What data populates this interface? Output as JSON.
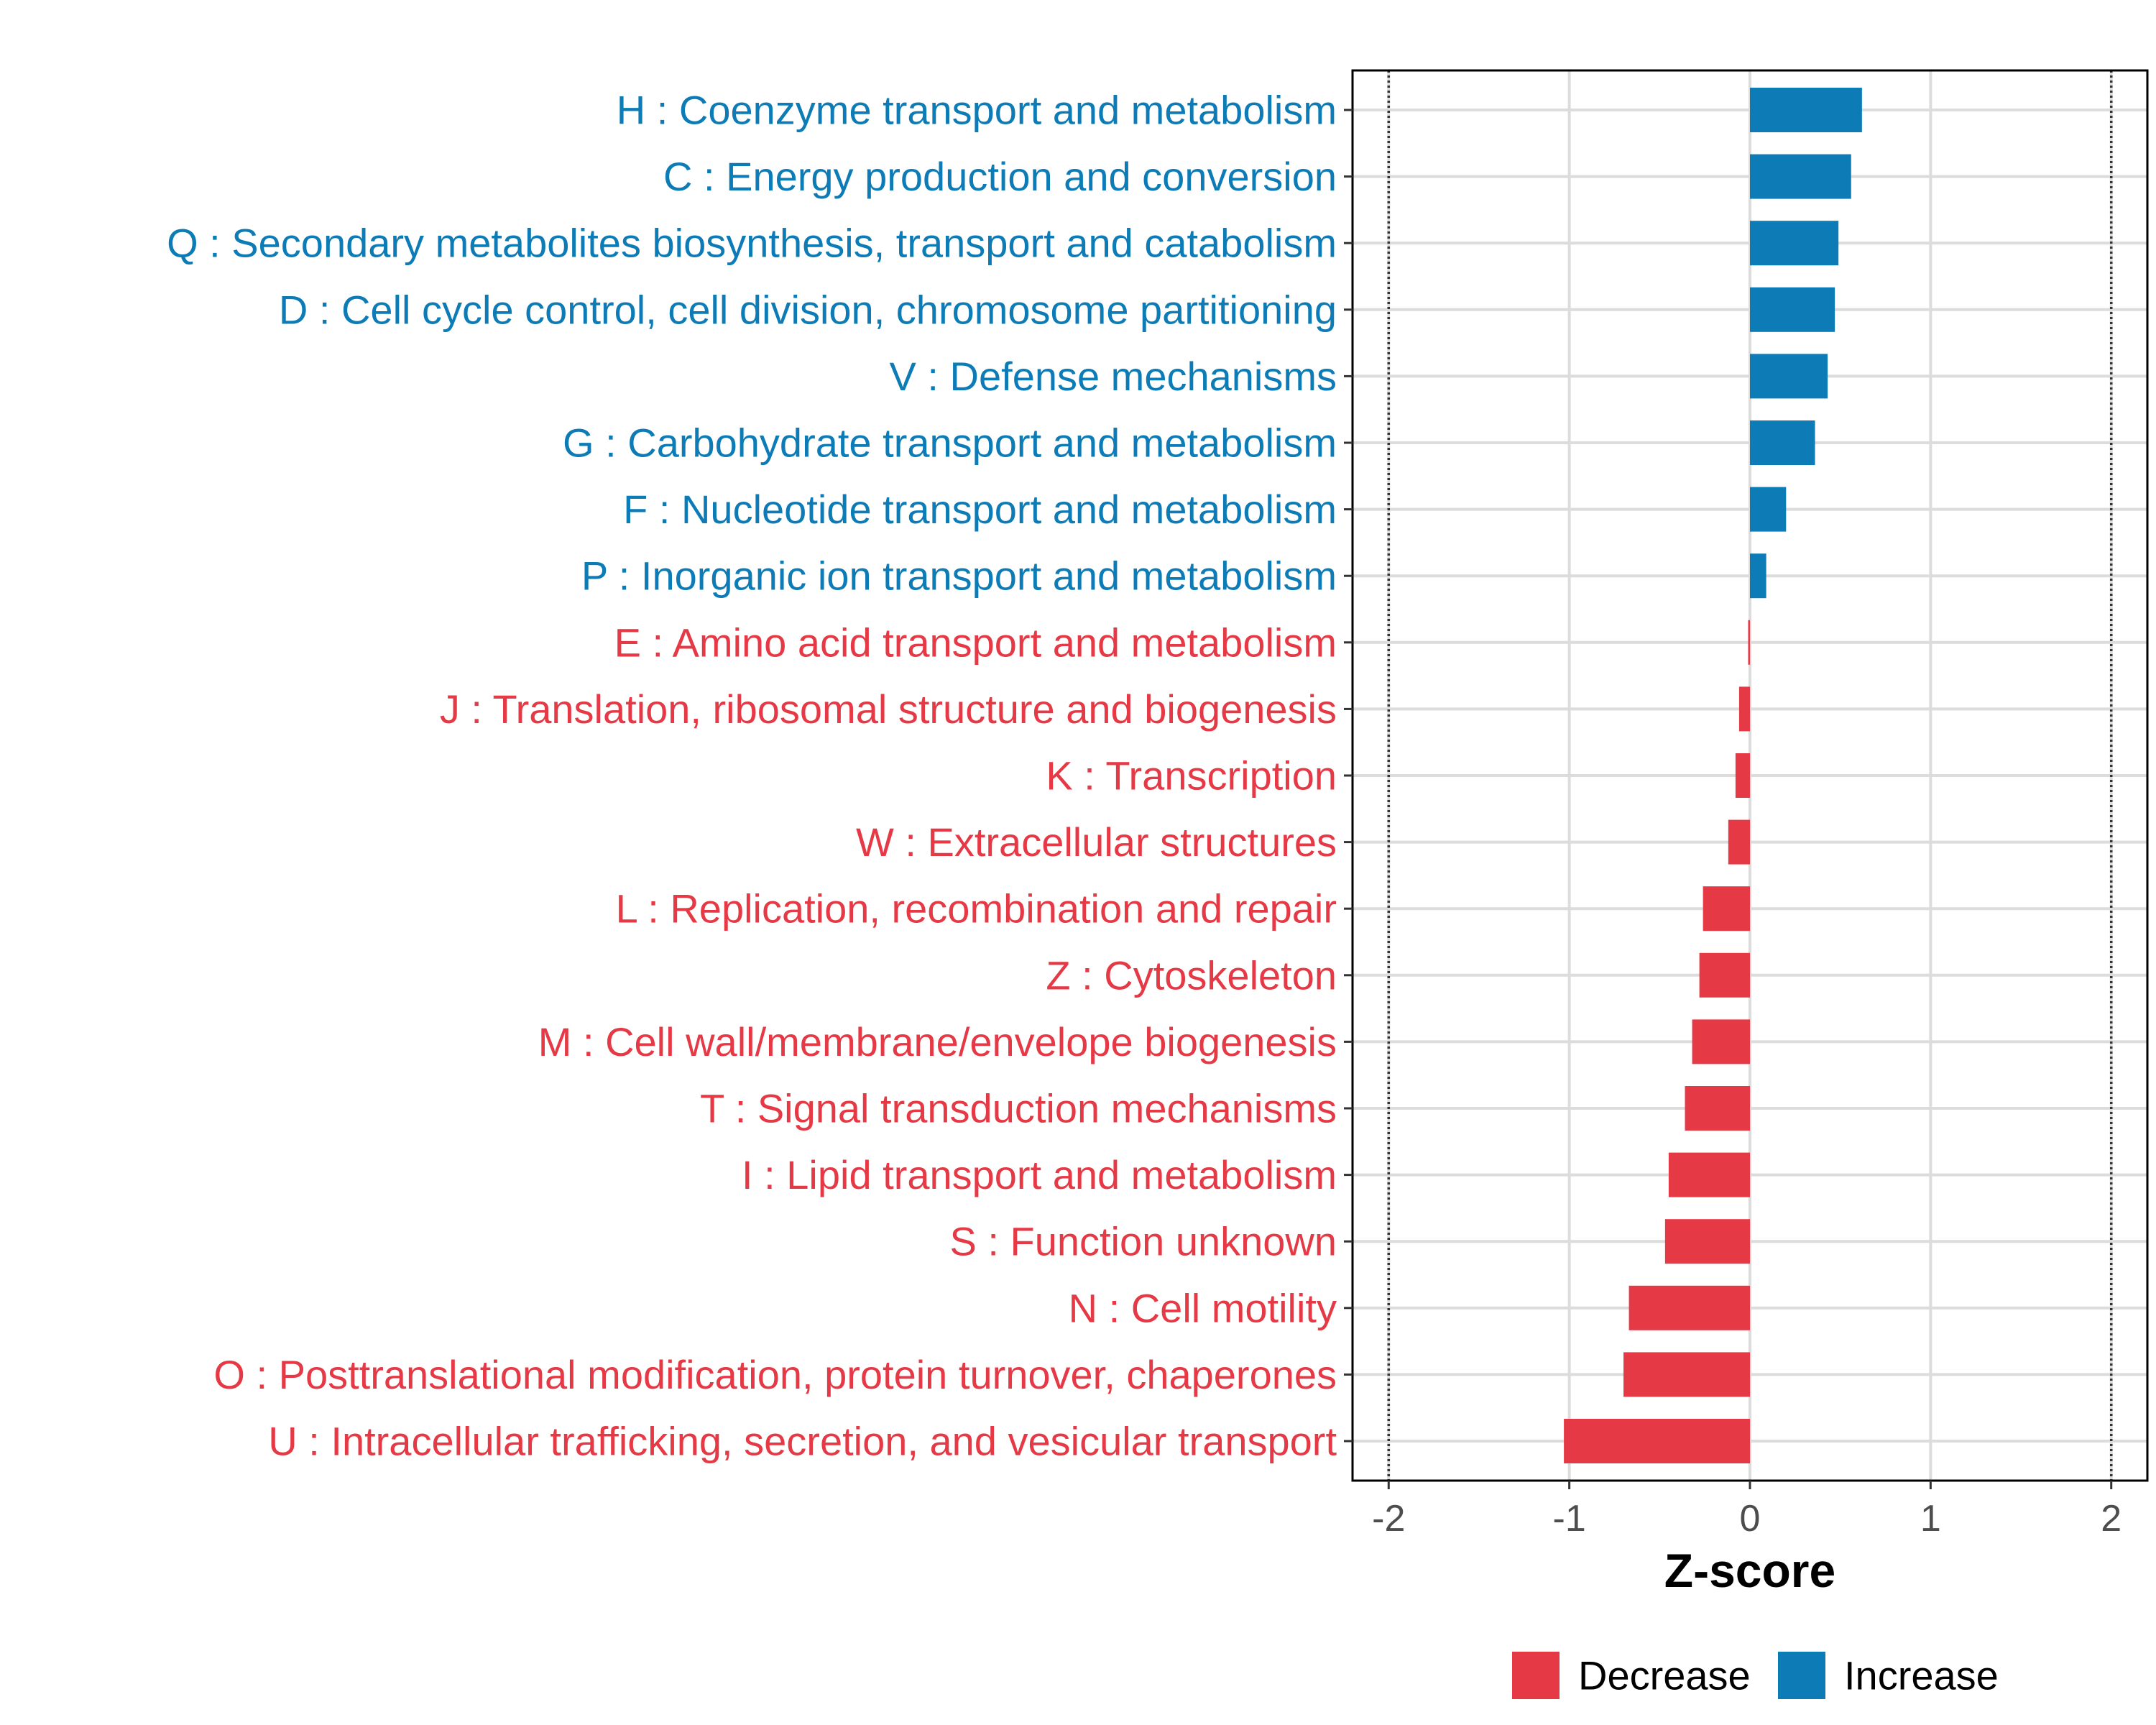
{
  "chart_data": {
    "type": "bar",
    "orientation": "horizontal",
    "title": "",
    "xlabel": "Z-score",
    "ylabel": "",
    "xlim": [
      -2.2,
      2.2
    ],
    "x_ticks": [
      -2,
      -1,
      0,
      1,
      2
    ],
    "x_tick_labels": [
      "-2",
      "-1",
      "0",
      "1",
      "2"
    ],
    "reference_lines": [
      -2,
      2
    ],
    "grid": true,
    "colors": {
      "Increase": "#0C7BB6",
      "Decrease": "#E63946"
    },
    "categories": [
      "H : Coenzyme transport and metabolism",
      "C : Energy production and conversion",
      "Q : Secondary metabolites biosynthesis, transport and catabolism",
      "D : Cell cycle control, cell division, chromosome partitioning",
      "V : Defense mechanisms",
      "G : Carbohydrate transport and metabolism",
      "F : Nucleotide transport and metabolism",
      "P : Inorganic ion transport and metabolism",
      "E : Amino acid transport and metabolism",
      "J : Translation, ribosomal structure and biogenesis",
      "K : Transcription",
      "W : Extracellular structures",
      "L : Replication, recombination and repair",
      "Z : Cytoskeleton",
      "M : Cell wall/membrane/envelope biogenesis",
      "T : Signal transduction mechanisms",
      "I : Lipid transport and metabolism",
      "S : Function unknown",
      "N : Cell motility",
      "O : Posttranslational modification, protein turnover, chaperones",
      "U : Intracellular trafficking, secretion, and vesicular transport"
    ],
    "values": [
      0.62,
      0.56,
      0.49,
      0.47,
      0.43,
      0.36,
      0.2,
      0.09,
      -0.01,
      -0.06,
      -0.08,
      -0.12,
      -0.26,
      -0.28,
      -0.32,
      -0.36,
      -0.45,
      -0.47,
      -0.67,
      -0.7,
      -1.03
    ],
    "legend": {
      "position": "bottom",
      "entries": [
        "Decrease",
        "Increase"
      ]
    }
  }
}
